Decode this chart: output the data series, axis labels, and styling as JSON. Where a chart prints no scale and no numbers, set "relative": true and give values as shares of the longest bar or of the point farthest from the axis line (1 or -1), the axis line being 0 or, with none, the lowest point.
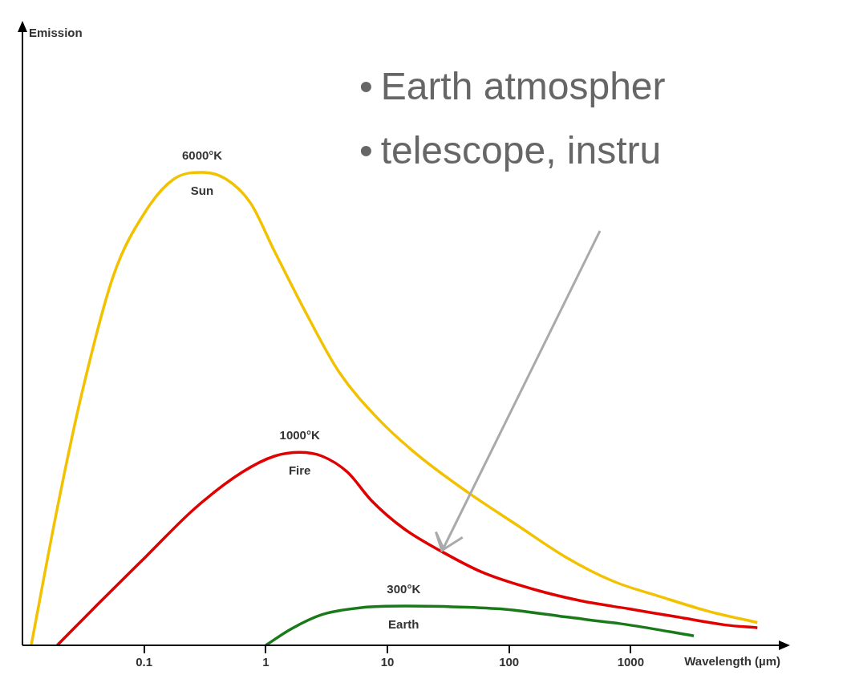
{
  "chart_data": {
    "type": "line",
    "relative": true,
    "log": "x",
    "xlabel": "Wavelength (µm)",
    "xlim": [
      0.01,
      17000
    ],
    "xticks": [
      0.1,
      1,
      10,
      100,
      1000
    ],
    "grid": false,
    "legend": false,
    "marker": "none",
    "line_style": "solid",
    "series": [
      {
        "name": "Sun",
        "color": "#f2c200",
        "x": [
          0.0118,
          0.0193,
          0.0304,
          0.056,
          0.103,
          0.176,
          0.3,
          0.47,
          0.75,
          1.18,
          2.2,
          4.0,
          8.6,
          18,
          46,
          115,
          290,
          710,
          1800,
          4500,
          11000
        ],
        "values": [
          0,
          0.289,
          0.527,
          0.782,
          0.918,
          0.986,
          1,
          0.986,
          0.935,
          0.833,
          0.697,
          0.578,
          0.476,
          0.401,
          0.323,
          0.255,
          0.187,
          0.136,
          0.102,
          0.071,
          0.048
        ]
      },
      {
        "name": "Fire",
        "color": "#e00000",
        "x": [
          0.0193,
          0.041,
          0.103,
          0.26,
          0.64,
          1.18,
          1.9,
          2.9,
          4.7,
          7.4,
          13.6,
          29,
          62,
          156,
          390,
          970,
          2400,
          6000,
          11000
        ],
        "values": [
          0,
          0.085,
          0.187,
          0.289,
          0.366,
          0.4,
          0.408,
          0.4,
          0.366,
          0.306,
          0.247,
          0.196,
          0.153,
          0.119,
          0.094,
          0.077,
          0.06,
          0.043,
          0.037
        ]
      },
      {
        "name": "Earth",
        "color": "#1a7a1a",
        "x": [
          1,
          1.6,
          2.9,
          6.3,
          13.6,
          29,
          85,
          290,
          970,
          3300
        ],
        "values": [
          0,
          0.034,
          0.065,
          0.08,
          0.083,
          0.082,
          0.077,
          0.06,
          0.043,
          0.02
        ]
      }
    ],
    "annotations": [
      "6000°K",
      "1000°K",
      "300°K",
      "Emission",
      "•\tEarth atmospher",
      "•\ttelescope, instru"
    ]
  }
}
